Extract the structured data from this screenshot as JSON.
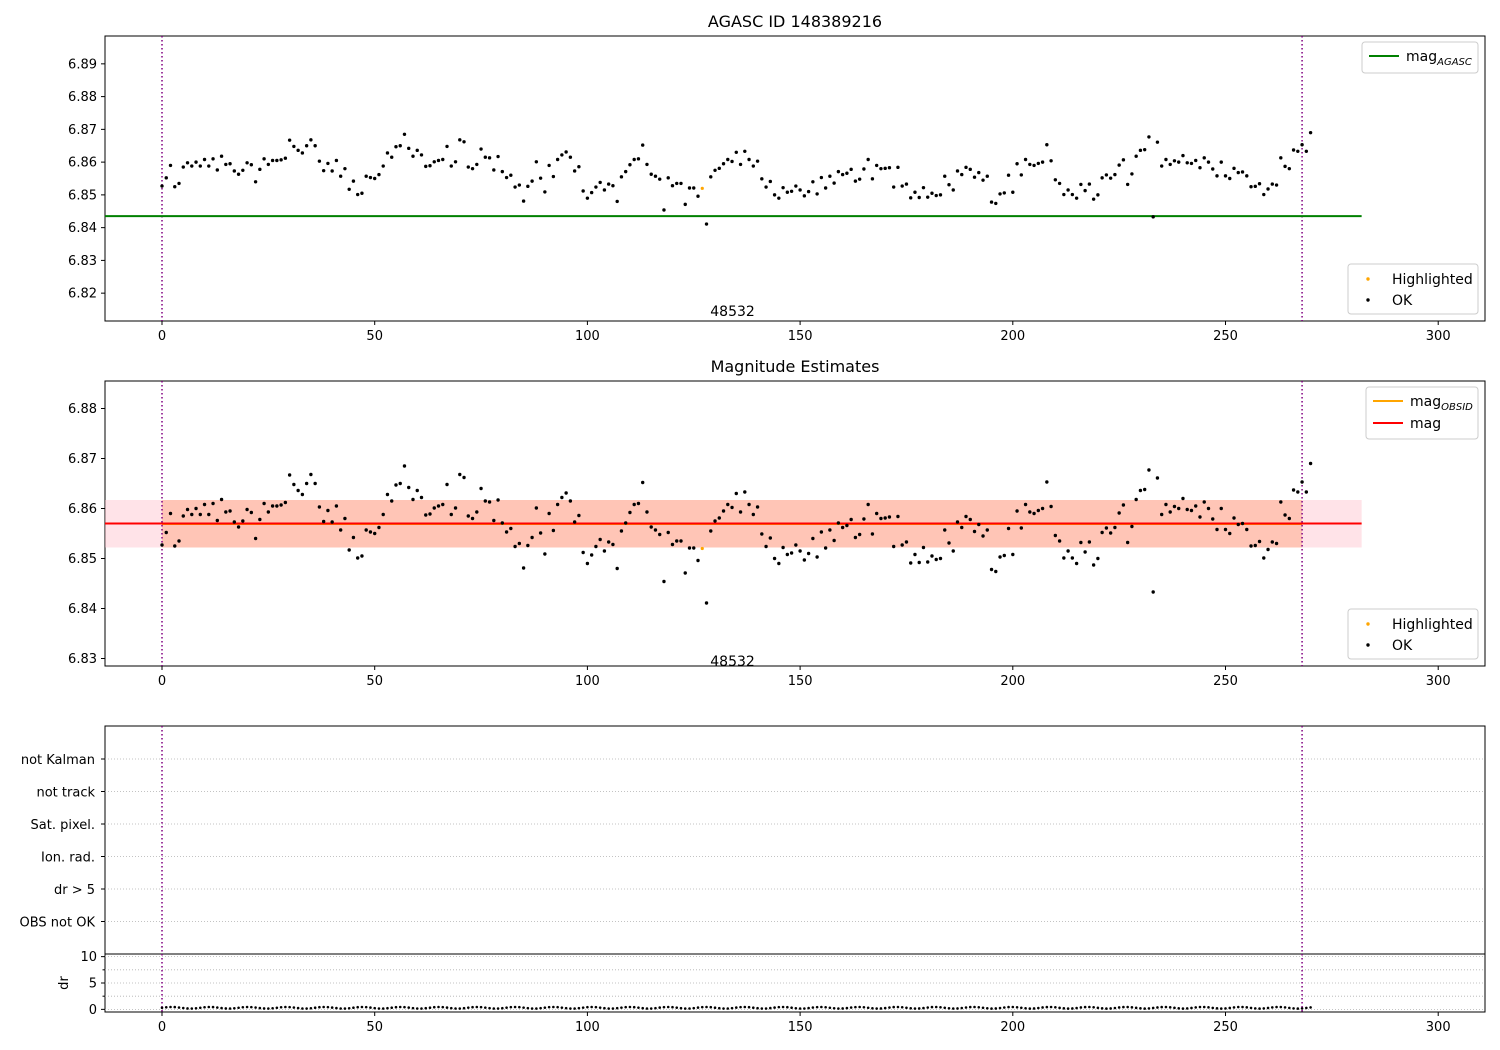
{
  "figure": {
    "top_title": "AGASC ID 148389216",
    "middle_title": "Magnitude Estimates",
    "obsid_label": "48532"
  },
  "colors": {
    "ok": "#000000",
    "highlighted": "#ffa500",
    "mag_agasc": "#008000",
    "mag_obsid": "#ffa500",
    "mag": "#ff0000",
    "obsid_band": "#ffa07a",
    "mag_band": "#ffc0cb",
    "boundary": "#800080",
    "grid": "#b0b0b0"
  },
  "chart_data": [
    {
      "name": "top",
      "type": "scatter",
      "title": "AGASC ID 148389216",
      "xlim": [
        -13.4,
        311
      ],
      "ylim": [
        6.8115,
        6.8985
      ],
      "yticks": [
        6.82,
        6.83,
        6.84,
        6.85,
        6.86,
        6.87,
        6.88,
        6.89
      ],
      "ytick_labels": [
        "6.82",
        "6.83",
        "6.84",
        "6.85",
        "6.86",
        "6.87",
        "6.88",
        "6.89"
      ],
      "xticks": [
        0,
        50,
        100,
        150,
        200,
        250,
        300
      ],
      "xtick_labels": [
        "0",
        "50",
        "100",
        "150",
        "200",
        "250",
        "300"
      ],
      "vlines": [
        0,
        268
      ],
      "hlines": [
        {
          "name": "mag_AGASC",
          "y": 6.8435,
          "x_from": -13.4,
          "x_to": 282
        }
      ],
      "legend_upper": [
        {
          "label": "mag",
          "sub": "AGASC",
          "kind": "line",
          "color_key": "mag_agasc"
        }
      ],
      "legend_lower": [
        {
          "label": "Highlighted",
          "kind": "dot",
          "color_key": "highlighted"
        },
        {
          "label": "OK",
          "kind": "dot",
          "color_key": "ok"
        }
      ],
      "annotation": {
        "text": "48532",
        "x": 127,
        "y": 6.8145
      }
    },
    {
      "name": "middle",
      "type": "scatter",
      "title": "Magnitude Estimates",
      "xlim": [
        -13.4,
        311
      ],
      "ylim": [
        6.8285,
        6.8855
      ],
      "yticks": [
        6.83,
        6.84,
        6.85,
        6.86,
        6.87,
        6.88
      ],
      "ytick_labels": [
        "6.83",
        "6.84",
        "6.85",
        "6.86",
        "6.87",
        "6.88"
      ],
      "xticks": [
        0,
        50,
        100,
        150,
        200,
        250,
        300
      ],
      "xtick_labels": [
        "0",
        "50",
        "100",
        "150",
        "200",
        "250",
        "300"
      ],
      "vlines": [
        0,
        268
      ],
      "bands": [
        {
          "name": "mag_band",
          "x_from": -13.4,
          "x_to": 282,
          "y_from": 6.8522,
          "y_to": 6.8617,
          "color_key": "mag_band"
        },
        {
          "name": "obsid_band",
          "x_from": 0,
          "x_to": 268,
          "y_from": 6.8522,
          "y_to": 6.8617,
          "color_key": "obsid_band"
        }
      ],
      "hlines": [
        {
          "name": "mag_OBSID",
          "y": 6.8569,
          "x_from": 0,
          "x_to": 268,
          "color_key": "mag_obsid"
        },
        {
          "name": "mag",
          "y": 6.857,
          "x_from": -13.4,
          "x_to": 282,
          "color_key": "mag"
        }
      ],
      "legend_upper": [
        {
          "label": "mag",
          "sub": "OBSID",
          "kind": "line",
          "color_key": "mag_obsid"
        },
        {
          "label": "mag",
          "sub": "",
          "kind": "line",
          "color_key": "mag"
        }
      ],
      "legend_lower": [
        {
          "label": "Highlighted",
          "kind": "dot",
          "color_key": "highlighted"
        },
        {
          "label": "OK",
          "kind": "dot",
          "color_key": "ok"
        }
      ],
      "annotation": {
        "text": "48532",
        "x": 127,
        "y": 6.8295
      }
    },
    {
      "name": "flags",
      "type": "scatter",
      "xlim": [
        -13.4,
        311
      ],
      "categories": [
        "not Kalman",
        "not track",
        "Sat. pixel.",
        "Ion. rad.",
        "dr > 5",
        "OBS not OK"
      ],
      "flag_points": [],
      "vlines": [
        0,
        268
      ]
    },
    {
      "name": "dr",
      "type": "scatter",
      "ylabel": "dr",
      "xlim": [
        -13.4,
        311
      ],
      "ylim": [
        -0.5,
        10.5
      ],
      "yticks": [
        0,
        5,
        10
      ],
      "ytick_labels": [
        "0",
        "5",
        "10"
      ],
      "xticks": [
        0,
        50,
        100,
        150,
        200,
        250,
        300
      ],
      "xtick_labels": [
        "0",
        "50",
        "100",
        "150",
        "200",
        "250",
        "300"
      ],
      "vlines": [
        0,
        268
      ],
      "values_per_point": "dr",
      "dr_values_approx": 0.3
    }
  ],
  "series": {
    "x_start": 0,
    "mag": [
      6.8527,
      6.8552,
      6.859,
      6.8525,
      6.8535,
      6.8585,
      6.8598,
      6.8588,
      6.86,
      6.8588,
      6.8608,
      6.8588,
      6.861,
      6.8576,
      6.8618,
      6.8593,
      6.8595,
      6.8573,
      6.8563,
      6.8575,
      6.8598,
      6.8592,
      6.854,
      6.8578,
      6.861,
      6.8593,
      6.8605,
      6.8605,
      6.8607,
      6.8612,
      6.8667,
      6.8648,
      6.8636,
      6.8628,
      6.865,
      6.8668,
      6.865,
      6.8603,
      6.8574,
      6.8596,
      6.8573,
      6.8605,
      6.8557,
      6.858,
      6.8517,
      6.8542,
      6.8501,
      6.8505,
      6.8557,
      6.8553,
      6.855,
      6.8562,
      6.8588,
      6.8628,
      6.8615,
      6.8647,
      6.865,
      6.8685,
      6.8642,
      6.8618,
      6.8636,
      6.8622,
      6.8587,
      6.8589,
      6.8601,
      6.8605,
      6.8608,
      6.8648,
      6.8588,
      6.8601,
      6.8668,
      6.8662,
      6.8585,
      6.858,
      6.8593,
      6.864,
      6.8615,
      6.8613,
      6.8576,
      6.8617,
      6.8571,
      6.8553,
      6.856,
      6.8524,
      6.853,
      6.8481,
      6.8526,
      6.8542,
      6.8601,
      6.8551,
      6.8509,
      6.859,
      6.8556,
      6.8608,
      6.8622,
      6.8631,
      6.8615,
      6.8573,
      6.8586,
      6.8512,
      6.849,
      6.8507,
      6.8524,
      6.8538,
      6.8515,
      6.8533,
      6.8528,
      6.848,
      6.8555,
      6.8571,
      6.8592,
      6.8608,
      6.861,
      6.8652,
      6.8593,
      6.8563,
      6.8557,
      6.8548,
      6.8454,
      6.8552,
      6.8528,
      6.8535,
      6.8535,
      6.8471,
      6.8521,
      6.8521,
      6.8496,
      6.852,
      6.8411,
      6.8555,
      6.8575,
      6.8581,
      6.8595,
      6.8608,
      6.8602,
      6.863,
      6.8593,
      6.8633,
      6.8608,
      6.8588,
      6.8603,
      6.8549,
      6.8524,
      6.8541,
      6.85,
      6.849,
      6.8522,
      6.8508,
      6.8511,
      6.8527,
      6.8515,
      6.8497,
      6.851,
      6.854,
      6.8503,
      6.8553,
      6.8521,
      6.8557,
      6.8536,
      6.8571,
      6.8562,
      6.8566,
      6.8578,
      6.8542,
      6.8548,
      6.8579,
      6.8608,
      6.8549,
      6.859,
      6.858,
      6.8581,
      6.8583,
      6.8524,
      6.8584,
      6.8527,
      6.8533,
      6.8491,
      6.8508,
      6.8492,
      6.8522,
      6.8493,
      6.8505,
      6.8498,
      6.85,
      6.8557,
      6.8531,
      6.8515,
      6.8573,
      6.8562,
      6.8584,
      6.8578,
      6.8554,
      6.8568,
      6.8545,
      6.8557,
      6.8478,
      6.8474,
      6.8503,
      6.8506,
      6.856,
      6.8508,
      6.8595,
      6.8561,
      6.8608,
      6.8593,
      6.859,
      6.8596,
      6.86,
      6.8653,
      6.8604,
      6.8546,
      6.8535,
      6.8501,
      6.8515,
      6.8501,
      6.849,
      6.8532,
      6.8513,
      6.8533,
      6.8487,
      6.85,
      6.8552,
      6.8561,
      6.8551,
      6.8562,
      6.8591,
      6.8607,
      6.8532,
      6.8564,
      6.8618,
      6.8636,
      6.8638,
      6.8677,
      6.8433,
      6.8661,
      6.8588,
      6.8608,
      6.8593,
      6.8604,
      6.86,
      6.862,
      6.8598,
      6.8596,
      6.8605,
      6.8583,
      6.8613,
      6.86,
      6.8579,
      6.8558,
      6.86,
      6.8558,
      6.855,
      6.8581,
      6.8568,
      6.857,
      6.8558,
      6.8525,
      6.8526,
      6.8534,
      6.8501,
      6.8518,
      6.8533,
      6.853,
      6.8613,
      6.8587,
      6.858,
      6.8637,
      6.8633,
      6.8653,
      6.8633,
      6.869
    ],
    "highlighted_index": 127
  }
}
